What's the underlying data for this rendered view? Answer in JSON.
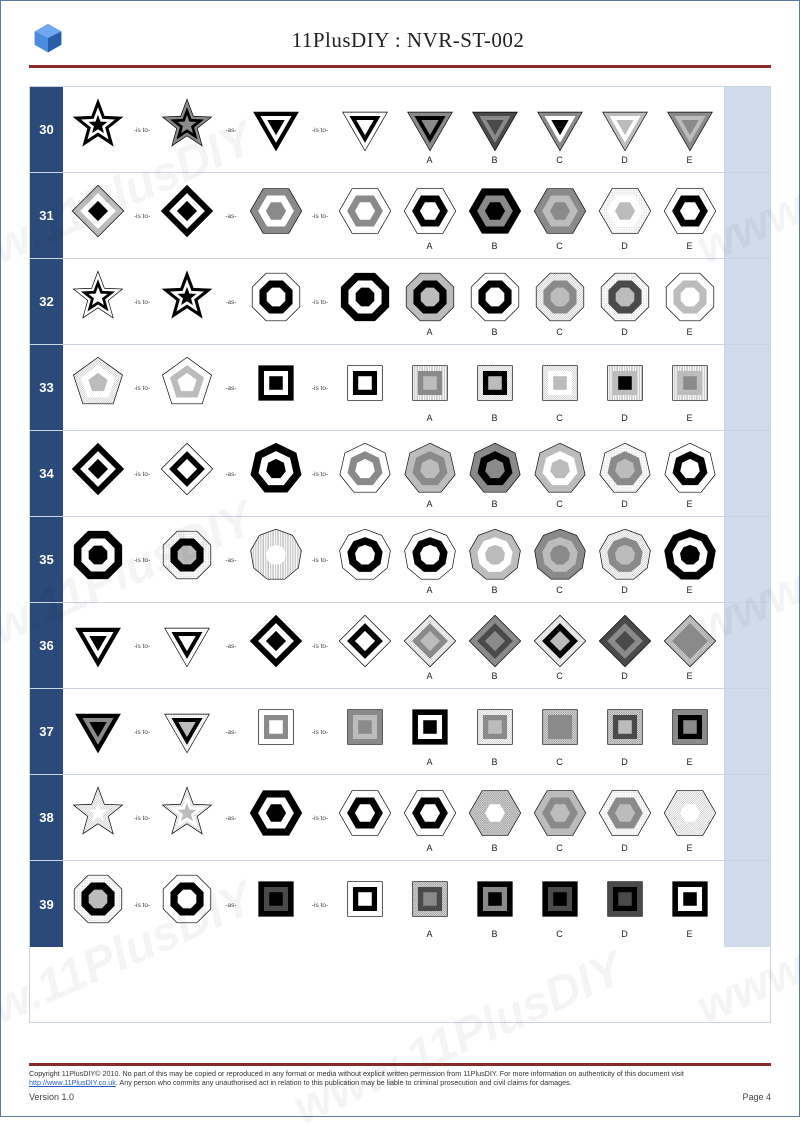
{
  "header": {
    "title": "11PlusDIY : NVR-ST-002"
  },
  "connectors": {
    "isto": "-is to-",
    "as": "-as-"
  },
  "option_labels": [
    "A",
    "B",
    "C",
    "D",
    "E"
  ],
  "colors": {
    "nav_blue": "#2b4a7a",
    "rule_red": "#8b2a2a",
    "border_blue": "#5b7ba3",
    "light_blue": "#d0dcec",
    "white": "#ffffff",
    "black": "#000000",
    "g_dark": "#4a4a4a",
    "g_mid": "#8a8a8a",
    "g_light": "#bcbcbc"
  },
  "rows": [
    {
      "n": "30",
      "shape": "star5",
      "q": [
        {
          "o": [
            "#000000",
            "#ffffff",
            "#000000"
          ]
        },
        {
          "o": [
            "#8a8a8a",
            "#000000",
            "#8a8a8a"
          ]
        },
        {
          "o": [
            "#000000",
            "#ffffff",
            "#000000"
          ]
        },
        {
          "o": [
            "#ffffff",
            "#000000",
            "#ffffff"
          ]
        },
        {
          "opts": [
            {
              "o": [
                "#8a8a8a",
                "#000000",
                "#8a8a8a"
              ]
            },
            {
              "o": [
                "#4a4a4a",
                "#8a8a8a",
                "#4a4a4a"
              ]
            },
            {
              "o": [
                "#8a8a8a",
                "#ffffff",
                "#000000"
              ]
            },
            {
              "o": [
                "#bcbcbc",
                "#ffffff",
                "#bcbcbc"
              ]
            },
            {
              "o": [
                "#8a8a8a",
                "#bcbcbc",
                "#8a8a8a"
              ]
            }
          ]
        }
      ],
      "qshape": "tri"
    },
    {
      "n": "31",
      "shape": "diamond",
      "q": [
        {
          "o": [
            "#bcbcbc",
            "#ffffff",
            "#000000"
          ]
        },
        {
          "o": [
            "#000000",
            "#ffffff",
            "#000000"
          ]
        },
        {
          "o": [
            "#8a8a8a",
            "#ffffff",
            "#8a8a8a"
          ]
        },
        {
          "o": [
            "#ffffff",
            "#8a8a8a",
            "#ffffff"
          ]
        },
        {
          "opts": [
            {
              "o": [
                "#ffffff",
                "#000000",
                "#ffffff"
              ]
            },
            {
              "o": [
                "#000000",
                "#8a8a8a",
                "#000000"
              ]
            },
            {
              "o": [
                "#8a8a8a",
                "#bcbcbc",
                "#8a8a8a"
              ]
            },
            {
              "o": [
                "#bcbcbc",
                "#ffffff",
                "#bcbcbc"
              ],
              "pat": "dots"
            },
            {
              "o": [
                "#ffffff",
                "#000000",
                "#ffffff"
              ]
            }
          ]
        }
      ],
      "qshape": "hex"
    },
    {
      "n": "32",
      "shape": "star5",
      "q": [
        {
          "o": [
            "#ffffff",
            "#000000",
            "#ffffff"
          ]
        },
        {
          "o": [
            "#000000",
            "#ffffff",
            "#000000"
          ]
        },
        {
          "o": [
            "#ffffff",
            "#000000",
            "#ffffff"
          ]
        },
        {
          "o": [
            "#000000",
            "#ffffff",
            "#000000"
          ]
        },
        {
          "opts": [
            {
              "o": [
                "#bcbcbc",
                "#000000",
                "#bcbcbc"
              ]
            },
            {
              "o": [
                "#ffffff",
                "#000000",
                "#ffffff"
              ]
            },
            {
              "o": [
                "#bcbcbc",
                "#8a8a8a",
                "#bcbcbc"
              ],
              "pat": "hatch-d"
            },
            {
              "o": [
                "#bcbcbc",
                "#4a4a4a",
                "#bcbcbc"
              ],
              "pat": "dots"
            },
            {
              "o": [
                "#ffffff",
                "#bcbcbc",
                "#ffffff"
              ]
            }
          ]
        }
      ],
      "qshape": "oct"
    },
    {
      "n": "33",
      "shape": "pent",
      "q": [
        {
          "o": [
            "#bcbcbc",
            "#ffffff",
            "#bcbcbc"
          ],
          "pat": "hatch-d"
        },
        {
          "o": [
            "#ffffff",
            "#bcbcbc",
            "#ffffff"
          ]
        },
        {
          "o": [
            "#000000",
            "#ffffff",
            "#000000"
          ]
        },
        {
          "o": [
            "#ffffff",
            "#000000",
            "#ffffff"
          ]
        },
        {
          "opts": [
            {
              "o": [
                "#bcbcbc",
                "#8a8a8a",
                "#bcbcbc"
              ],
              "pat": "hatch-v"
            },
            {
              "o": [
                "#bcbcbc",
                "#000000",
                "#bcbcbc"
              ],
              "pat": "hatch-d"
            },
            {
              "o": [
                "#bcbcbc",
                "#ffffff",
                "#bcbcbc"
              ],
              "pat": "hatch-d"
            },
            {
              "o": [
                "#bcbcbc",
                "#bcbcbc",
                "#000000"
              ],
              "pat": "hatch-v"
            },
            {
              "o": [
                "#8a8a8a",
                "#bcbcbc",
                "#8a8a8a"
              ],
              "pat": "hatch-v"
            }
          ]
        }
      ],
      "qshape": "square"
    },
    {
      "n": "34",
      "shape": "diamond",
      "q": [
        {
          "o": [
            "#000000",
            "#ffffff",
            "#000000"
          ],
          "pat": "hatch-v"
        },
        {
          "o": [
            "#ffffff",
            "#000000",
            "#ffffff"
          ]
        },
        {
          "o": [
            "#000000",
            "#ffffff",
            "#000000"
          ]
        },
        {
          "o": [
            "#ffffff",
            "#8a8a8a",
            "#ffffff"
          ]
        },
        {
          "opts": [
            {
              "o": [
                "#bcbcbc",
                "#8a8a8a",
                "#bcbcbc"
              ]
            },
            {
              "o": [
                "#8a8a8a",
                "#000000",
                "#8a8a8a"
              ]
            },
            {
              "o": [
                "#bcbcbc",
                "#ffffff",
                "#bcbcbc"
              ]
            },
            {
              "o": [
                "#bcbcbc",
                "#8a8a8a",
                "#bcbcbc"
              ],
              "pat": "dots"
            },
            {
              "o": [
                "#ffffff",
                "#000000",
                "#ffffff"
              ]
            }
          ]
        }
      ],
      "qshape": "hept"
    },
    {
      "n": "35",
      "shape": "oct",
      "q": [
        {
          "o": [
            "#000000",
            "#ffffff",
            "#000000"
          ]
        },
        {
          "o": [
            "#bcbcbc",
            "#000000",
            "#bcbcbc"
          ],
          "pat": "dots"
        },
        {
          "o": [
            "#ffffff",
            "#bcbcbc",
            "#ffffff"
          ],
          "pat": "hatch-v"
        },
        {
          "o": [
            "#ffffff",
            "#000000",
            "#ffffff"
          ]
        },
        {
          "opts": [
            {
              "o": [
                "#ffffff",
                "#000000",
                "#ffffff"
              ]
            },
            {
              "o": [
                "#bcbcbc",
                "#ffffff",
                "#bcbcbc"
              ]
            },
            {
              "o": [
                "#8a8a8a",
                "#bcbcbc",
                "#8a8a8a"
              ]
            },
            {
              "o": [
                "#bcbcbc",
                "#8a8a8a",
                "#bcbcbc"
              ],
              "pat": "hatch-d"
            },
            {
              "o": [
                "#000000",
                "#ffffff",
                "#000000"
              ]
            }
          ]
        }
      ],
      "qshape": "non"
    },
    {
      "n": "36",
      "shape": "tri",
      "q": [
        {
          "o": [
            "#000000",
            "#ffffff",
            "#000000"
          ]
        },
        {
          "o": [
            "#ffffff",
            "#000000",
            "#ffffff"
          ]
        },
        {
          "o": [
            "#000000",
            "#ffffff",
            "#000000"
          ]
        },
        {
          "o": [
            "#ffffff",
            "#000000",
            "#ffffff"
          ]
        },
        {
          "opts": [
            {
              "o": [
                "#bcbcbc",
                "#8a8a8a",
                "#bcbcbc"
              ],
              "pat": "hatch-d"
            },
            {
              "o": [
                "#8a8a8a",
                "#4a4a4a",
                "#8a8a8a"
              ]
            },
            {
              "o": [
                "#bcbcbc",
                "#000000",
                "#bcbcbc"
              ],
              "pat": "hatch-d"
            },
            {
              "o": [
                "#4a4a4a",
                "#8a8a8a",
                "#4a4a4a"
              ],
              "pat": "hatch-x"
            },
            {
              "o": [
                "#8a8a8a",
                "#8a8a8a",
                "#8a8a8a"
              ],
              "pat": "hatch-x"
            }
          ]
        }
      ],
      "qshape": "diamond"
    },
    {
      "n": "37",
      "shape": "tri",
      "q": [
        {
          "o": [
            "#000000",
            "#8a8a8a",
            "#000000"
          ]
        },
        {
          "o": [
            "#bcbcbc",
            "#000000",
            "#bcbcbc"
          ],
          "pat": "dots"
        },
        {
          "o": [
            "#ffffff",
            "#8a8a8a",
            "#ffffff"
          ]
        },
        {
          "o": [
            "#8a8a8a",
            "#bcbcbc",
            "#8a8a8a"
          ]
        },
        {
          "opts": [
            {
              "o": [
                "#000000",
                "#ffffff",
                "#000000"
              ]
            },
            {
              "o": [
                "#bcbcbc",
                "#8a8a8a",
                "#bcbcbc"
              ],
              "pat": "hatch-d"
            },
            {
              "o": [
                "#8a8a8a",
                "#8a8a8a",
                "#8a8a8a"
              ],
              "pat": "hatch-x"
            },
            {
              "o": [
                "#bcbcbc",
                "#4a4a4a",
                "#bcbcbc"
              ],
              "pat": "hatch-x"
            },
            {
              "o": [
                "#8a8a8a",
                "#000000",
                "#8a8a8a"
              ]
            }
          ]
        }
      ],
      "qshape": "square"
    },
    {
      "n": "38",
      "shape": "star5",
      "q": [
        {
          "o": [
            "#ffffff",
            "#bcbcbc",
            "#ffffff"
          ],
          "pat": "hatch-d"
        },
        {
          "o": [
            "#bcbcbc",
            "#ffffff",
            "#bcbcbc"
          ],
          "pat": "hatch-d"
        },
        {
          "o": [
            "#000000",
            "#ffffff",
            "#000000"
          ]
        },
        {
          "o": [
            "#ffffff",
            "#000000",
            "#ffffff"
          ]
        },
        {
          "opts": [
            {
              "o": [
                "#ffffff",
                "#000000",
                "#ffffff"
              ]
            },
            {
              "o": [
                "#ffffff",
                "#8a8a8a",
                "#ffffff"
              ],
              "pat": "hatch-x"
            },
            {
              "o": [
                "#bcbcbc",
                "#8a8a8a",
                "#bcbcbc"
              ]
            },
            {
              "o": [
                "#bcbcbc",
                "#8a8a8a",
                "#bcbcbc"
              ],
              "pat": "dots"
            },
            {
              "o": [
                "#ffffff",
                "#bcbcbc",
                "#ffffff"
              ],
              "pat": "hatch-d"
            }
          ]
        }
      ],
      "qshape": "hex"
    },
    {
      "n": "39",
      "shape": "oct",
      "q": [
        {
          "o": [
            "#bcbcbc",
            "#000000",
            "#bcbcbc"
          ],
          "pat": "dots"
        },
        {
          "o": [
            "#ffffff",
            "#000000",
            "#ffffff"
          ]
        },
        {
          "o": [
            "#000000",
            "#4a4a4a",
            "#000000"
          ]
        },
        {
          "o": [
            "#ffffff",
            "#000000",
            "#ffffff"
          ]
        },
        {
          "opts": [
            {
              "o": [
                "#8a8a8a",
                "#4a4a4a",
                "#8a8a8a"
              ],
              "pat": "hatch-x"
            },
            {
              "o": [
                "#000000",
                "#8a8a8a",
                "#000000"
              ]
            },
            {
              "o": [
                "#000000",
                "#4a4a4a",
                "#000000"
              ]
            },
            {
              "o": [
                "#4a4a4a",
                "#000000",
                "#4a4a4a"
              ]
            },
            {
              "o": [
                "#000000",
                "#ffffff",
                "#000000"
              ]
            }
          ]
        }
      ],
      "qshape": "square"
    }
  ],
  "footer": {
    "copyright": "Copyright 11PlusDIY© 2010. No part of this may be copied or reproduced in any format or media without explicit written permission from 11PlusDIY. For more information on authenticity of this document visit ",
    "link_text": "http://www.11PlusDIY.co.uk",
    "copyright2": ". Any person who commits any unauthorised act in relation to this publication may be liable to criminal prosecution and civil claims for damages.",
    "version": "Version 1.0",
    "page": "Page 4"
  },
  "watermark": "www.11PlusDIY"
}
